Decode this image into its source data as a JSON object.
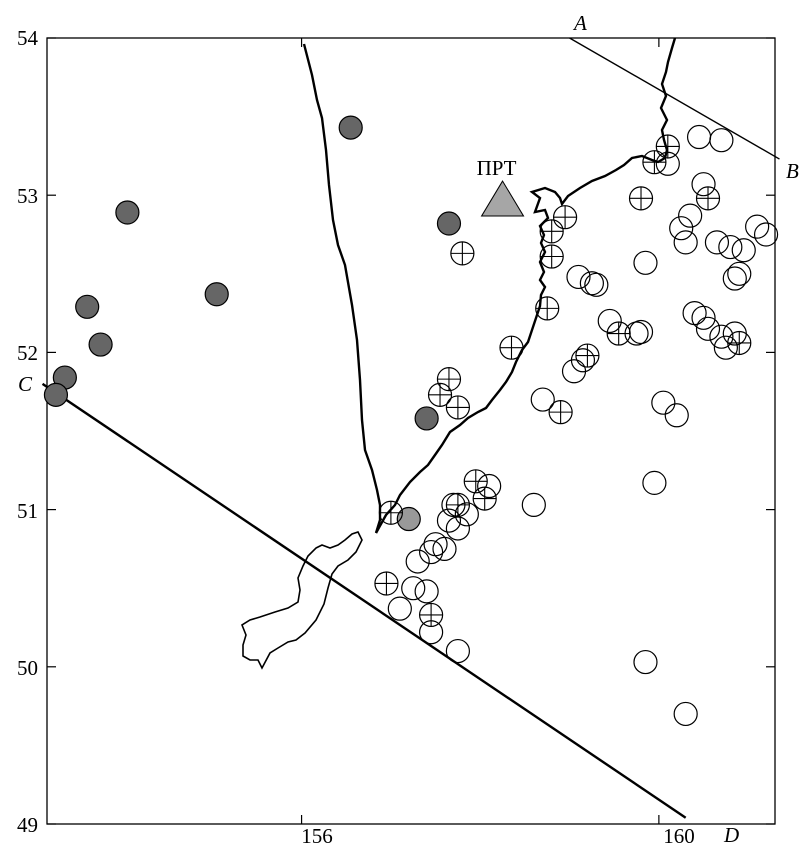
{
  "chart_data": {
    "type": "scatter",
    "title": "",
    "xlabel": "",
    "ylabel": "",
    "xlim": [
      153.15,
      161.3
    ],
    "ylim": [
      49,
      54
    ],
    "x_ticks": [
      {
        "value": 156,
        "label": "156"
      },
      {
        "value": 160,
        "label": "160"
      }
    ],
    "y_ticks": [
      {
        "value": 54,
        "label": "54"
      },
      {
        "value": 53,
        "label": "53"
      },
      {
        "value": 52,
        "label": "52"
      },
      {
        "value": 51,
        "label": "51"
      },
      {
        "value": 50,
        "label": "50"
      },
      {
        "value": 49,
        "label": "49"
      }
    ],
    "station": {
      "label": "ПРТ",
      "x": 158.25,
      "y": 52.95,
      "color": "#a6a6a6"
    },
    "profile_lines": [
      {
        "start_label": "A",
        "end_label": "B",
        "start": [
          159.0,
          54.0
        ],
        "end": [
          161.35,
          53.23
        ]
      },
      {
        "start_label": "C",
        "end_label": "D",
        "start": [
          153.1,
          51.8
        ],
        "end": [
          160.3,
          49.04
        ]
      }
    ],
    "colors": {
      "filled": "#666666",
      "filled_light": "#999999",
      "stroke": "#000000"
    },
    "series": [
      {
        "marker": "filled",
        "points": [
          [
            156.55,
            53.43
          ],
          [
            154.05,
            52.89
          ],
          [
            155.05,
            52.37
          ],
          [
            153.6,
            52.29
          ],
          [
            153.75,
            52.05
          ],
          [
            153.35,
            51.84
          ],
          [
            153.25,
            51.73
          ],
          [
            157.65,
            52.82
          ],
          [
            157.4,
            51.58
          ]
        ]
      },
      {
        "marker": "filled-light",
        "points": [
          [
            157.2,
            50.94
          ]
        ]
      },
      {
        "marker": "crossed",
        "points": [
          [
            160.1,
            53.31
          ],
          [
            159.95,
            53.21
          ],
          [
            157.8,
            52.63
          ],
          [
            158.95,
            52.86
          ],
          [
            158.8,
            52.61
          ],
          [
            158.8,
            52.77
          ],
          [
            158.75,
            52.28
          ],
          [
            159.8,
            52.98
          ],
          [
            160.55,
            52.98
          ],
          [
            158.35,
            52.03
          ],
          [
            157.65,
            51.83
          ],
          [
            157.55,
            51.73
          ],
          [
            157.75,
            51.65
          ],
          [
            158.9,
            51.62
          ],
          [
            159.2,
            51.98
          ],
          [
            159.55,
            52.12
          ],
          [
            160.9,
            52.06
          ],
          [
            157.0,
            50.98
          ],
          [
            157.75,
            51.03
          ],
          [
            157.95,
            51.18
          ],
          [
            158.05,
            51.07
          ],
          [
            156.95,
            50.53
          ],
          [
            157.45,
            50.33
          ]
        ]
      },
      {
        "marker": "open",
        "points": [
          [
            160.45,
            53.37
          ],
          [
            160.7,
            53.35
          ],
          [
            160.5,
            53.07
          ],
          [
            160.1,
            53.2
          ],
          [
            160.35,
            52.87
          ],
          [
            160.25,
            52.79
          ],
          [
            160.3,
            52.7
          ],
          [
            160.65,
            52.7
          ],
          [
            160.8,
            52.67
          ],
          [
            160.95,
            52.65
          ],
          [
            161.1,
            52.8
          ],
          [
            161.2,
            52.75
          ],
          [
            160.9,
            52.5
          ],
          [
            160.85,
            52.47
          ],
          [
            159.85,
            52.57
          ],
          [
            159.1,
            52.48
          ],
          [
            159.25,
            52.44
          ],
          [
            159.3,
            52.43
          ],
          [
            159.45,
            52.2
          ],
          [
            159.75,
            52.12
          ],
          [
            159.8,
            52.13
          ],
          [
            160.4,
            52.25
          ],
          [
            160.5,
            52.22
          ],
          [
            160.55,
            52.15
          ],
          [
            160.7,
            52.1
          ],
          [
            160.75,
            52.03
          ],
          [
            160.85,
            52.12
          ],
          [
            159.05,
            51.88
          ],
          [
            159.15,
            51.95
          ],
          [
            158.7,
            51.7
          ],
          [
            160.05,
            51.68
          ],
          [
            160.2,
            51.6
          ],
          [
            159.95,
            51.17
          ],
          [
            158.6,
            51.03
          ],
          [
            157.7,
            51.03
          ],
          [
            157.65,
            50.93
          ],
          [
            157.75,
            50.88
          ],
          [
            157.5,
            50.78
          ],
          [
            157.45,
            50.73
          ],
          [
            157.6,
            50.75
          ],
          [
            157.3,
            50.67
          ],
          [
            157.4,
            50.48
          ],
          [
            157.25,
            50.5
          ],
          [
            157.1,
            50.37
          ],
          [
            157.45,
            50.22
          ],
          [
            157.75,
            50.1
          ],
          [
            159.85,
            50.03
          ],
          [
            160.3,
            49.7
          ],
          [
            158.1,
            51.15
          ],
          [
            157.85,
            50.97
          ]
        ]
      }
    ]
  }
}
